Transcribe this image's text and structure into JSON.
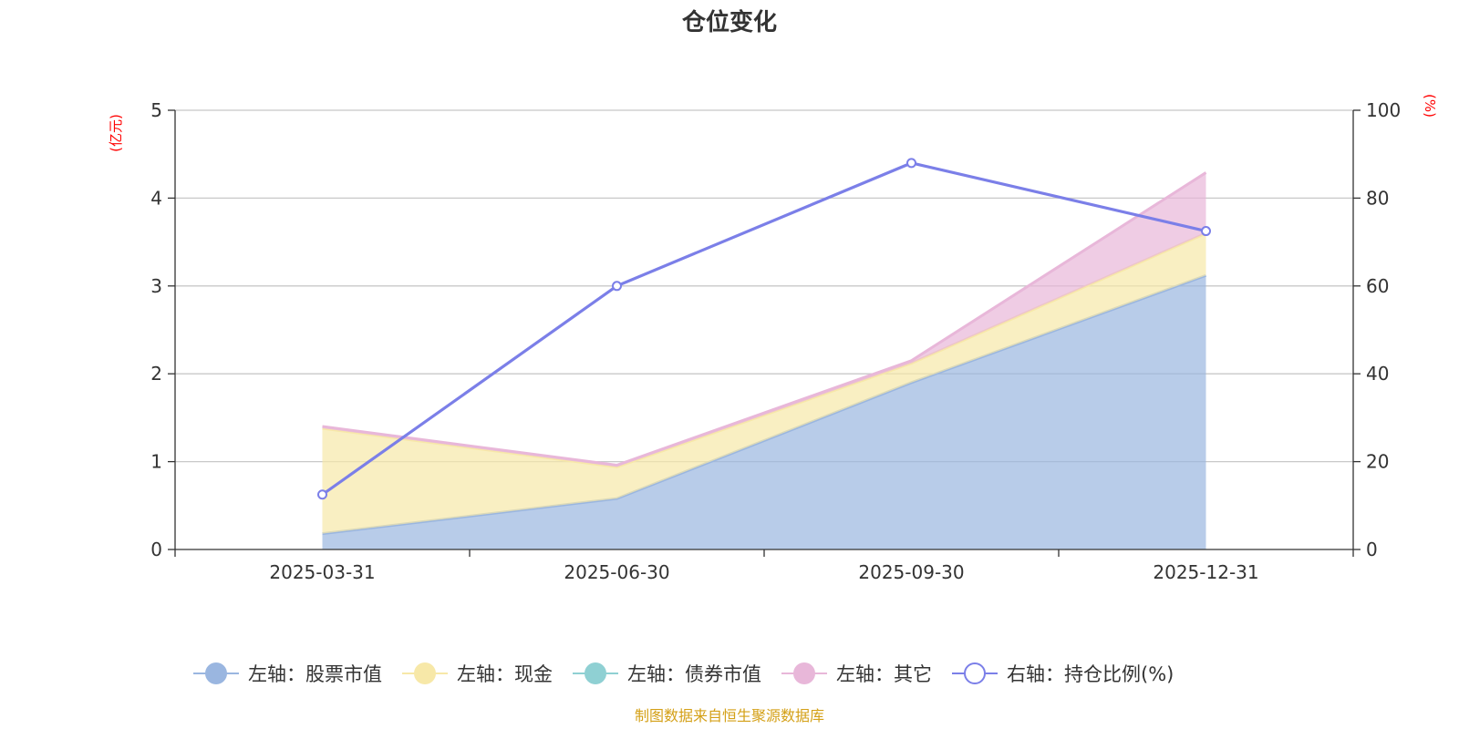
{
  "chart_data": {
    "type": "area",
    "title": "仓位变化",
    "left_axis": {
      "unit": "(亿元)",
      "ylim": [
        0,
        5
      ],
      "ticks": [
        0,
        1,
        2,
        3,
        4,
        5
      ]
    },
    "right_axis": {
      "unit": "(%)",
      "ylim": [
        0,
        100
      ],
      "ticks": [
        0,
        20,
        40,
        60,
        80,
        100
      ]
    },
    "categories": [
      "2025-03-31",
      "2025-06-30",
      "2025-09-30",
      "2025-12-31"
    ],
    "series": [
      {
        "name": "左轴：股票市值",
        "axis": "left",
        "kind": "stacked-area",
        "color": "#9ab6e0",
        "values": [
          0.18,
          0.58,
          1.9,
          3.12
        ]
      },
      {
        "name": "左轴：现金",
        "axis": "left",
        "kind": "stacked-area",
        "color": "#f7e8a8",
        "values": [
          1.2,
          0.36,
          0.22,
          0.48
        ]
      },
      {
        "name": "左轴：债券市值",
        "axis": "left",
        "kind": "stacked-area",
        "color": "#8fd0d3",
        "values": [
          0,
          0,
          0,
          0
        ]
      },
      {
        "name": "左轴：其它",
        "axis": "left",
        "kind": "stacked-area",
        "color": "#e8b7d9",
        "values": [
          0.02,
          0.02,
          0.03,
          0.69
        ]
      },
      {
        "name": "右轴：持仓比例(%)",
        "axis": "right",
        "kind": "line",
        "color": "#7b7fe8",
        "values": [
          12.5,
          60,
          88,
          72.5
        ]
      }
    ],
    "grid": true,
    "legend_position": "bottom",
    "source": "制图数据来自恒生聚源数据库"
  }
}
